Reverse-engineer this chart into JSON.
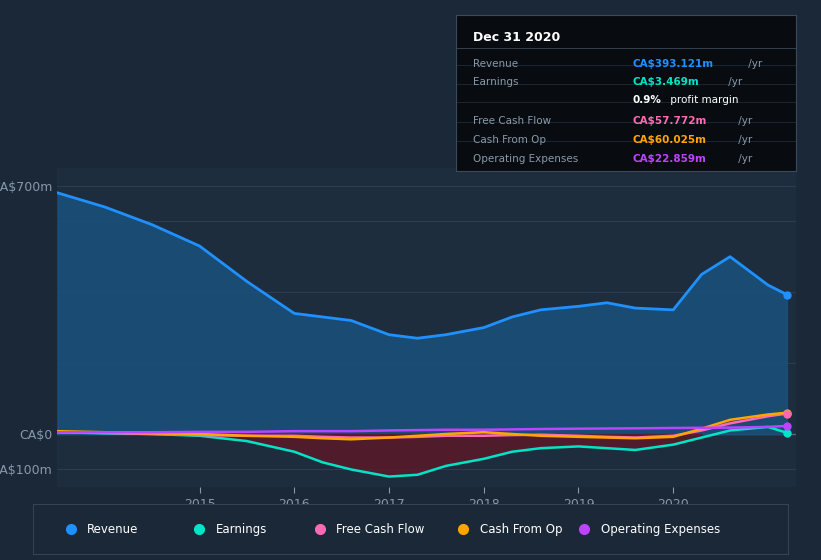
{
  "bg_color": "#1b2838",
  "plot_bg_color": "#1e2d3d",
  "grid_color": "#2a3f55",
  "ylabel_color": "#8899aa",
  "xlabel_color": "#8899aa",
  "zero_line_color": "#556677",
  "ylim": [
    -150,
    750
  ],
  "xlim": [
    2013.5,
    2021.3
  ],
  "yticks": [
    -100,
    0,
    700
  ],
  "ytick_labels": [
    "-CA$100m",
    "CA$0",
    "CA$700m"
  ],
  "xticks": [
    2015,
    2016,
    2017,
    2018,
    2019,
    2020
  ],
  "revenue_color": "#1e90ff",
  "revenue_fill": "#1a4f7a",
  "earnings_color": "#00e5c8",
  "earnings_fill_neg": "#5a1a2a",
  "fcf_color": "#ff69b4",
  "cashop_color": "#ffa500",
  "opex_color": "#bb44ff",
  "revenue_x": [
    2013.5,
    2014.0,
    2014.5,
    2015.0,
    2015.5,
    2016.0,
    2016.3,
    2016.6,
    2017.0,
    2017.3,
    2017.6,
    2018.0,
    2018.3,
    2018.6,
    2019.0,
    2019.3,
    2019.6,
    2020.0,
    2020.3,
    2020.6,
    2021.0,
    2021.2
  ],
  "revenue_y": [
    680,
    640,
    590,
    530,
    430,
    340,
    330,
    320,
    280,
    270,
    280,
    300,
    330,
    350,
    360,
    370,
    355,
    350,
    450,
    500,
    420,
    393
  ],
  "earnings_x": [
    2013.5,
    2014.0,
    2014.5,
    2015.0,
    2015.5,
    2016.0,
    2016.3,
    2016.6,
    2017.0,
    2017.3,
    2017.6,
    2018.0,
    2018.3,
    2018.6,
    2019.0,
    2019.3,
    2019.6,
    2020.0,
    2020.3,
    2020.6,
    2021.0,
    2021.2
  ],
  "earnings_y": [
    5,
    2,
    0,
    -5,
    -20,
    -50,
    -80,
    -100,
    -120,
    -115,
    -90,
    -70,
    -50,
    -40,
    -35,
    -40,
    -45,
    -30,
    -10,
    10,
    20,
    3.469
  ],
  "fcf_x": [
    2013.5,
    2014.0,
    2014.5,
    2015.0,
    2015.5,
    2016.0,
    2016.3,
    2016.6,
    2017.0,
    2017.3,
    2017.6,
    2018.0,
    2018.3,
    2018.6,
    2019.0,
    2019.3,
    2019.6,
    2020.0,
    2020.3,
    2020.6,
    2021.0,
    2021.2
  ],
  "fcf_y": [
    5,
    3,
    0,
    -3,
    -5,
    -5,
    -8,
    -10,
    -10,
    -8,
    -5,
    -5,
    -3,
    -2,
    -5,
    -8,
    -10,
    -5,
    10,
    30,
    50,
    57.772
  ],
  "cashop_x": [
    2013.5,
    2014.0,
    2014.5,
    2015.0,
    2015.5,
    2016.0,
    2016.3,
    2016.6,
    2017.0,
    2017.3,
    2017.6,
    2018.0,
    2018.3,
    2018.6,
    2019.0,
    2019.3,
    2019.6,
    2020.0,
    2020.3,
    2020.6,
    2021.0,
    2021.2
  ],
  "cashop_y": [
    8,
    5,
    2,
    0,
    -5,
    -8,
    -12,
    -15,
    -10,
    -5,
    0,
    5,
    0,
    -5,
    -8,
    -10,
    -12,
    -8,
    15,
    40,
    55,
    60.025
  ],
  "opex_x": [
    2013.5,
    2014.0,
    2014.5,
    2015.0,
    2015.5,
    2016.0,
    2016.6,
    2017.0,
    2017.6,
    2018.0,
    2018.6,
    2019.0,
    2019.6,
    2020.0,
    2020.6,
    2021.0,
    2021.2
  ],
  "opex_y": [
    5,
    5,
    5,
    6,
    6,
    8,
    8,
    10,
    12,
    12,
    14,
    15,
    16,
    17,
    18,
    20,
    22.859
  ],
  "tooltip_date": "Dec 31 2020",
  "tooltip_rows": [
    {
      "label": "Revenue",
      "value": "CA$393.121m",
      "suffix": " /yr",
      "color": "#1e90ff"
    },
    {
      "label": "Earnings",
      "value": "CA$3.469m",
      "suffix": " /yr",
      "color": "#00e5c8"
    },
    {
      "label": "",
      "value": "0.9%",
      "suffix": " profit margin",
      "color": "#ffffff"
    },
    {
      "label": "Free Cash Flow",
      "value": "CA$57.772m",
      "suffix": " /yr",
      "color": "#ff69b4"
    },
    {
      "label": "Cash From Op",
      "value": "CA$60.025m",
      "suffix": " /yr",
      "color": "#ffa500"
    },
    {
      "label": "Operating Expenses",
      "value": "CA$22.859m",
      "suffix": " /yr",
      "color": "#bb44ff"
    }
  ],
  "legend_labels": [
    "Revenue",
    "Earnings",
    "Free Cash Flow",
    "Cash From Op",
    "Operating Expenses"
  ],
  "legend_colors": [
    "#1e90ff",
    "#00e5c8",
    "#ff69b4",
    "#ffa500",
    "#bb44ff"
  ]
}
